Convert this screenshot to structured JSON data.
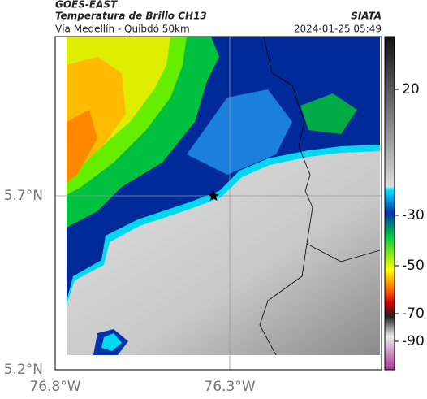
{
  "header": {
    "product": "GOES-EAST",
    "title": "Temperatura de Brillo CH13",
    "subtitle": "Vía Medellín - Quibdó 50km",
    "source": "SIATA",
    "timestamp": "2024-01-25 05:49"
  },
  "axes": {
    "lat_labels": [
      "5.7°N",
      "5.2°N"
    ],
    "lon_labels": [
      "76.8°W",
      "76.3°W"
    ]
  },
  "colorbar": {
    "ticks": [
      20,
      -30,
      -50,
      -70,
      -90
    ]
  }
}
